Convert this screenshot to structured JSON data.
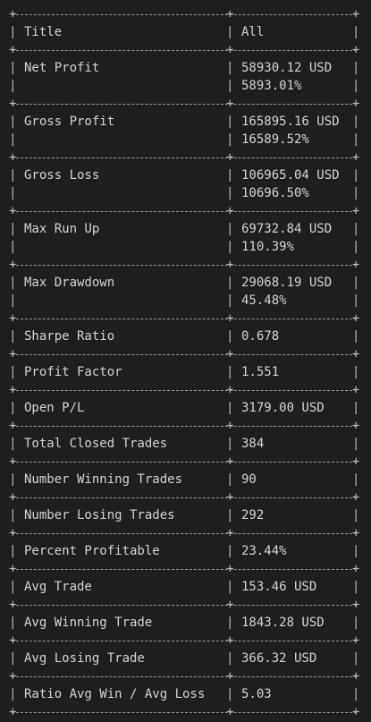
{
  "header": {
    "title": "Title",
    "value": "All"
  },
  "rows": [
    {
      "label": "Net Profit",
      "values": [
        "58930.12 USD",
        "5893.01%"
      ]
    },
    {
      "label": "Gross Profit",
      "values": [
        "165895.16 USD",
        "16589.52%"
      ]
    },
    {
      "label": "Gross Loss",
      "values": [
        "106965.04 USD",
        "10696.50%"
      ]
    },
    {
      "label": "Max Run Up",
      "values": [
        "69732.84 USD",
        "110.39%"
      ]
    },
    {
      "label": "Max Drawdown",
      "values": [
        "29068.19 USD",
        "45.48%"
      ]
    },
    {
      "label": "Sharpe Ratio",
      "values": [
        "0.678"
      ]
    },
    {
      "label": "Profit Factor",
      "values": [
        "1.551"
      ]
    },
    {
      "label": "Open P/L",
      "values": [
        "3179.00 USD"
      ]
    },
    {
      "label": "Total Closed Trades",
      "values": [
        "384"
      ]
    },
    {
      "label": "Number Winning Trades",
      "values": [
        "90"
      ]
    },
    {
      "label": "Number Losing Trades",
      "values": [
        "292"
      ]
    },
    {
      "label": "Percent Profitable",
      "values": [
        "23.44%"
      ]
    },
    {
      "label": "Avg Trade",
      "values": [
        "153.46 USD"
      ]
    },
    {
      "label": "Avg Winning Trade",
      "values": [
        "1843.28 USD"
      ]
    },
    {
      "label": "Avg Losing Trade",
      "values": [
        "366.32 USD"
      ]
    },
    {
      "label": "Ratio Avg Win / Avg Loss",
      "values": [
        "5.03"
      ]
    }
  ],
  "glyphs": {
    "corner": "+",
    "vertical": "|"
  }
}
